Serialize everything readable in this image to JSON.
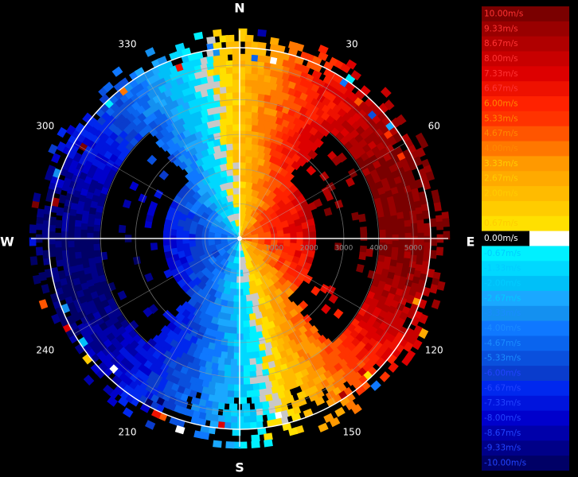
{
  "chart_data": {
    "type": "heatmap",
    "projection": "polar",
    "title": "",
    "compass": {
      "north": "N",
      "east": "E",
      "south": "S",
      "west": "W"
    },
    "azimuth_ticks": [
      "30",
      "60",
      "120",
      "150",
      "210",
      "240",
      "300",
      "330"
    ],
    "range_ticks": [
      "1000",
      "2000",
      "3000",
      "4000",
      "5000"
    ],
    "range_max": 5500,
    "colorbar": {
      "min": -10,
      "max": 10,
      "labels": [
        "10.00m/s",
        "9.33m/s",
        "8.67m/s",
        "8.00m/s",
        "7.33m/s",
        "6.67m/s",
        "6.00m/s",
        "5.33m/s",
        "4.67m/s",
        "4.00m/s",
        "3.33m/s",
        "2.67m/s",
        "2.00m/s",
        "1.33m/s",
        "0.67m/s",
        "0.00m/s",
        "-0.67m/s",
        "-1.33m/s",
        "-2.00m/s",
        "-2.67m/s",
        "-3.33m/s",
        "-4.00m/s",
        "-4.67m/s",
        "-5.33m/s",
        "-6.00m/s",
        "-6.67m/s",
        "-7.33m/s",
        "-8.00m/s",
        "-8.67m/s",
        "-9.33m/s",
        "-10.00m/s"
      ],
      "colors": [
        "#7a0000",
        "#990000",
        "#b00000",
        "#c80000",
        "#dd0000",
        "#ee1100",
        "#ff2200",
        "#ff3300",
        "#ff5500",
        "#ff7700",
        "#ff9900",
        "#ffaa00",
        "#ffbb00",
        "#ffcc00",
        "#ffe000",
        "#ffffff",
        "#00f0ff",
        "#00d8ff",
        "#00c0f8",
        "#1aa8ff",
        "#1490f0",
        "#0f78ff",
        "#0a64ee",
        "#0a50dd",
        "#0a3ccc",
        "#0028ee",
        "#0014dd",
        "#0000cc",
        "#0000aa",
        "#000088",
        "#000066"
      ]
    },
    "wind": {
      "direction_deg": 80,
      "max_speed": 10
    },
    "echo_gaps_deg": [
      [
        40,
        140
      ],
      [
        220,
        320
      ]
    ]
  }
}
